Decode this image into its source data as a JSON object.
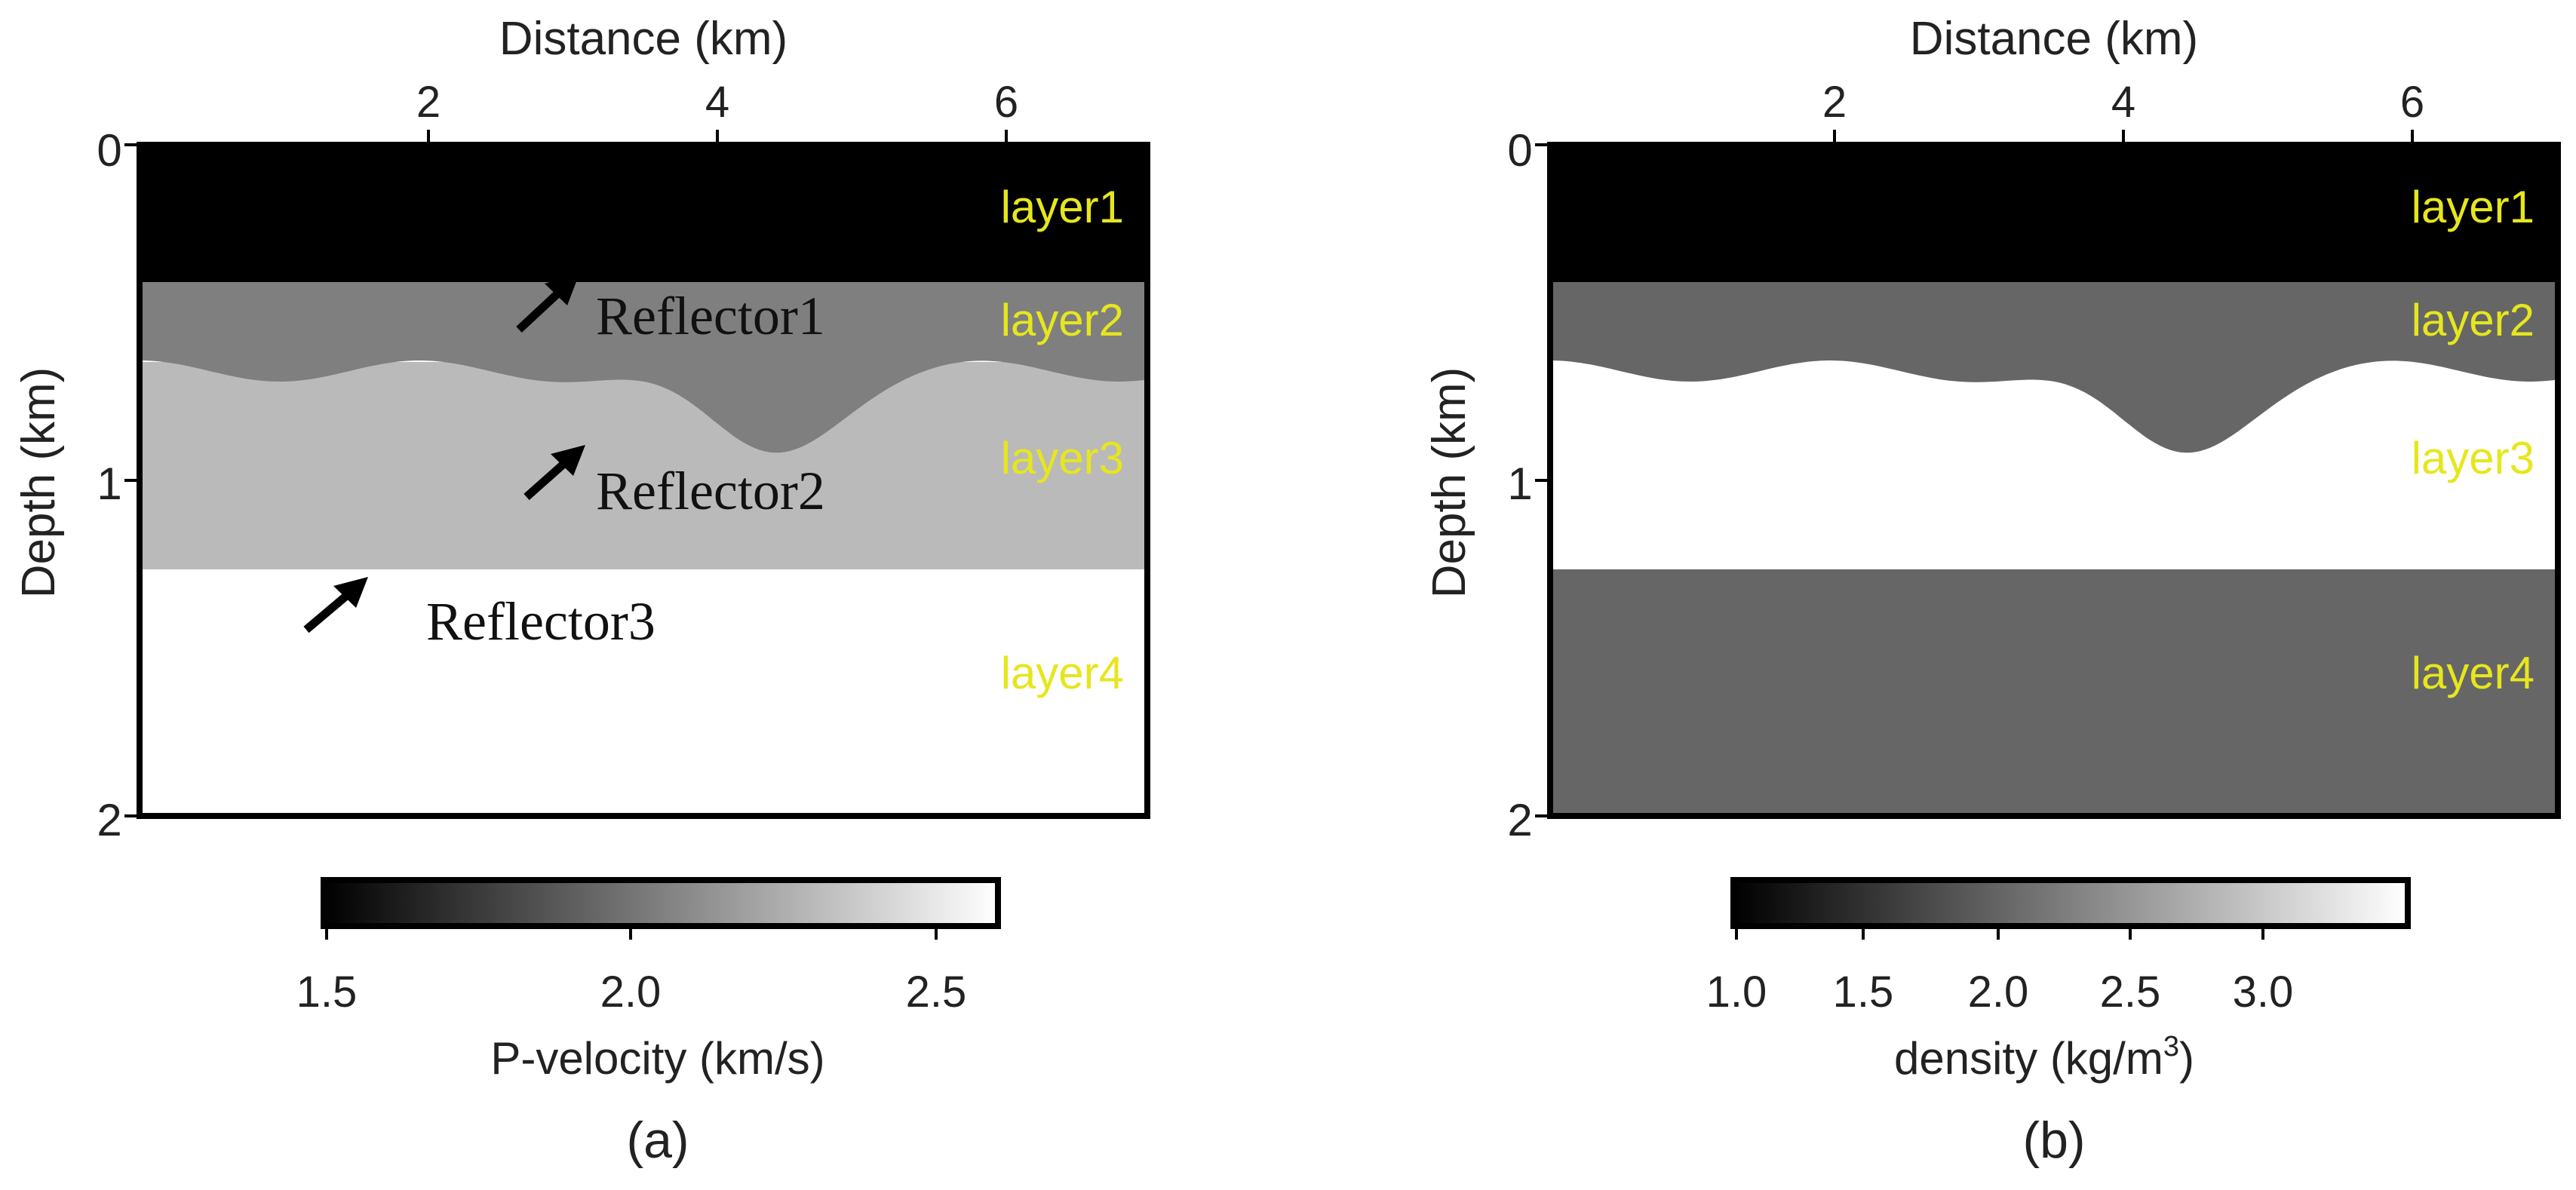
{
  "panels": [
    {
      "id": "a",
      "x_axis_label": "Distance (km)",
      "x_ticks": [
        "2",
        "4",
        "6"
      ],
      "y_axis_label": "Depth (km)",
      "y_ticks": [
        "0",
        "1",
        "2"
      ],
      "layers": [
        "layer1",
        "layer2",
        "layer3",
        "layer4"
      ],
      "layer_colors": [
        "#000000",
        "#7f7f7f",
        "#bababa",
        "#ffffff"
      ],
      "reflectors": [
        "Reflector1",
        "Reflector2",
        "Reflector3"
      ],
      "colorbar_ticks": [
        "1.5",
        "2.0",
        "2.5"
      ],
      "colorbar_label": "P-velocity (km/s)",
      "caption": "(a)"
    },
    {
      "id": "b",
      "x_axis_label": "Distance (km)",
      "x_ticks": [
        "2",
        "4",
        "6"
      ],
      "y_axis_label": "Depth (km)",
      "y_ticks": [
        "0",
        "1",
        "2"
      ],
      "layers": [
        "layer1",
        "layer2",
        "layer3",
        "layer4"
      ],
      "layer_colors": [
        "#000000",
        "#666666",
        "#ffffff",
        "#666666"
      ],
      "colorbar_ticks": [
        "1.0",
        "1.5",
        "2.0",
        "2.5",
        "3.0"
      ],
      "colorbar_label_main": "density (kg/m",
      "colorbar_label_sup": "3",
      "colorbar_label_end": ")",
      "caption": "(b)"
    }
  ],
  "label_color": "#e6e61f"
}
